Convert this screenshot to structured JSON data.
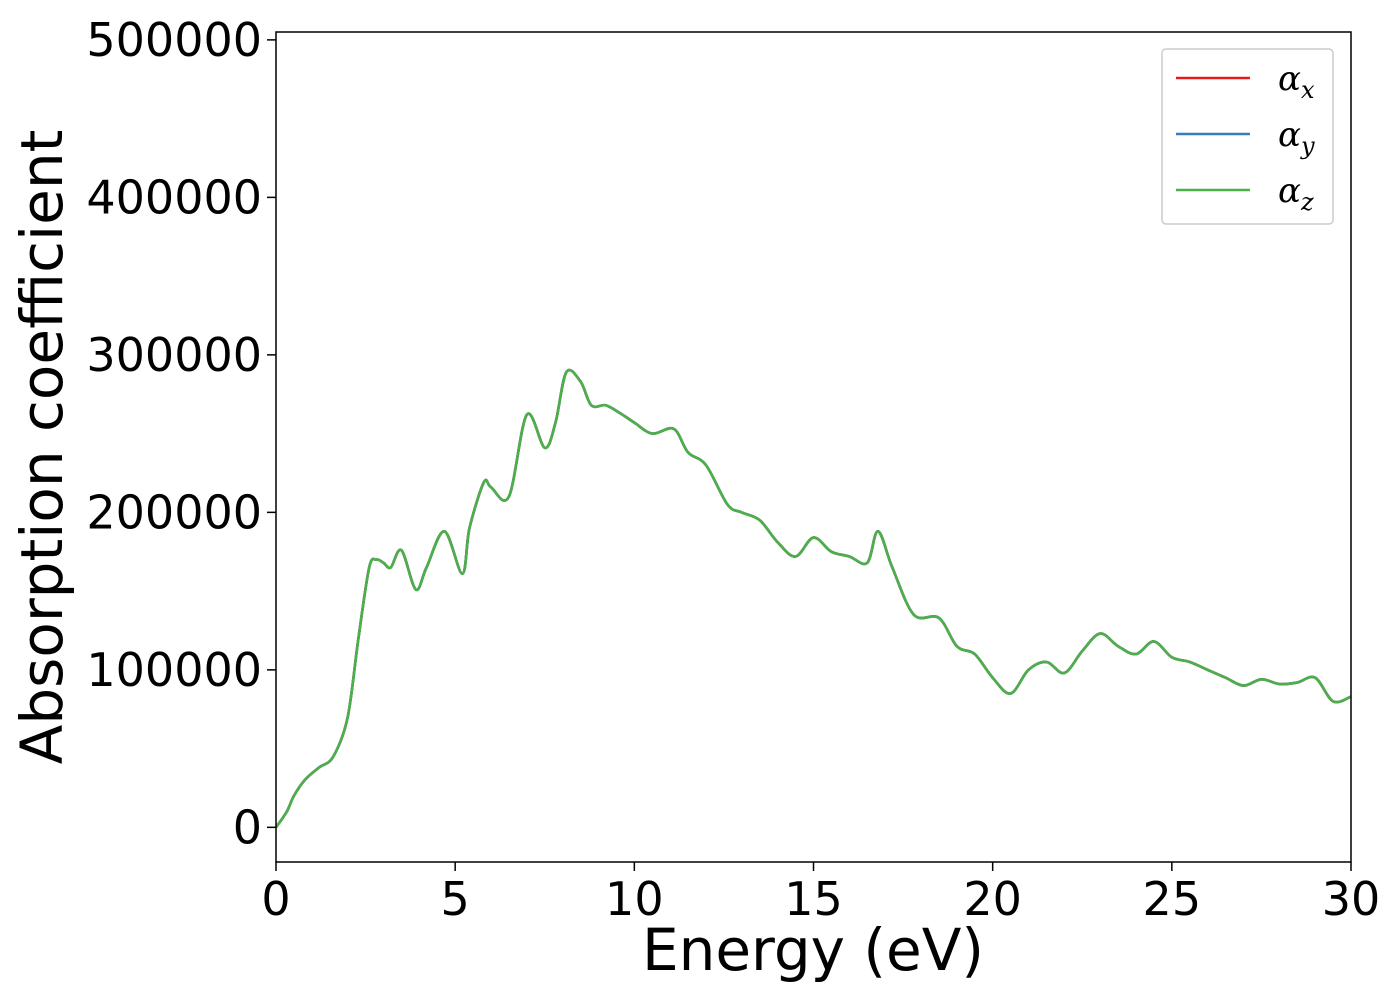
{
  "chart_data": {
    "type": "line",
    "xlabel": "Energy (eV)",
    "ylabel": "Absorption coefficient",
    "xlim": [
      0,
      30
    ],
    "ylim": [
      -22000,
      505000
    ],
    "xticks": [
      "0",
      "5",
      "10",
      "15",
      "20",
      "25",
      "30"
    ],
    "xtick_values": [
      0,
      5,
      10,
      15,
      20,
      25,
      30
    ],
    "yticks": [
      "0",
      "100000",
      "200000",
      "300000",
      "400000",
      "500000"
    ],
    "ytick_values": [
      0,
      100000,
      200000,
      300000,
      400000,
      500000
    ],
    "grid": false,
    "legend_position": "top-right",
    "x": [
      0,
      0.3,
      0.5,
      0.8,
      1.2,
      1.6,
      2.0,
      2.3,
      2.6,
      2.8,
      3.0,
      3.2,
      3.5,
      3.9,
      4.2,
      4.7,
      5.2,
      5.4,
      5.8,
      6.0,
      6.5,
      7.0,
      7.5,
      7.8,
      8.1,
      8.5,
      8.8,
      9.2,
      9.6,
      10.0,
      10.5,
      11.1,
      11.5,
      12.0,
      12.6,
      13.0,
      13.5,
      14.0,
      14.5,
      15.0,
      15.5,
      16.0,
      16.5,
      16.8,
      17.2,
      17.8,
      18.5,
      19.0,
      19.5,
      20.0,
      20.5,
      21.0,
      21.5,
      22.0,
      22.5,
      23.0,
      23.5,
      24.0,
      24.5,
      25.0,
      25.5,
      26.0,
      26.5,
      27.0,
      27.5,
      28.0,
      28.5,
      29.0,
      29.5,
      30.0
    ],
    "series": [
      {
        "name": "α_x",
        "color": "#e41a1c",
        "values": [
          0,
          10000,
          20000,
          30000,
          38000,
          45000,
          70000,
          120000,
          165000,
          170000,
          168000,
          165000,
          176000,
          151000,
          165000,
          188000,
          161000,
          190000,
          219000,
          216000,
          210000,
          262000,
          241000,
          257000,
          289000,
          283000,
          268000,
          268000,
          263000,
          257000,
          250000,
          253000,
          238000,
          230000,
          205000,
          200000,
          195000,
          181000,
          172000,
          184000,
          175000,
          172000,
          168000,
          188000,
          165000,
          135000,
          133000,
          115000,
          110000,
          95000,
          85000,
          100000,
          105000,
          98000,
          112000,
          123000,
          115000,
          110000,
          118000,
          108000,
          105000,
          100000,
          95000,
          90000,
          94000,
          91000,
          92000,
          95000,
          80000,
          83000
        ]
      },
      {
        "name": "α_y",
        "color": "#377eb8",
        "values": [
          0,
          10000,
          20000,
          30000,
          38000,
          45000,
          70000,
          120000,
          165000,
          170000,
          168000,
          165000,
          176000,
          151000,
          165000,
          188000,
          161000,
          190000,
          219000,
          216000,
          210000,
          262000,
          241000,
          257000,
          289000,
          283000,
          268000,
          268000,
          263000,
          257000,
          250000,
          253000,
          238000,
          230000,
          205000,
          200000,
          195000,
          181000,
          172000,
          184000,
          175000,
          172000,
          168000,
          188000,
          165000,
          135000,
          133000,
          115000,
          110000,
          95000,
          85000,
          100000,
          105000,
          98000,
          112000,
          123000,
          115000,
          110000,
          118000,
          108000,
          105000,
          100000,
          95000,
          90000,
          94000,
          91000,
          92000,
          95000,
          80000,
          83000
        ]
      },
      {
        "name": "α_z",
        "color": "#4daf4a",
        "values": [
          0,
          10000,
          20000,
          30000,
          38000,
          45000,
          70000,
          120000,
          165000,
          170000,
          168000,
          165000,
          176000,
          151000,
          165000,
          188000,
          161000,
          190000,
          219000,
          216000,
          210000,
          262000,
          241000,
          257000,
          289000,
          283000,
          268000,
          268000,
          263000,
          257000,
          250000,
          253000,
          238000,
          230000,
          205000,
          200000,
          195000,
          181000,
          172000,
          184000,
          175000,
          172000,
          168000,
          188000,
          165000,
          135000,
          133000,
          115000,
          110000,
          95000,
          85000,
          100000,
          105000,
          98000,
          112000,
          123000,
          115000,
          110000,
          118000,
          108000,
          105000,
          100000,
          95000,
          90000,
          94000,
          91000,
          92000,
          95000,
          80000,
          83000
        ]
      }
    ],
    "legend": [
      {
        "symbol": "α",
        "subscript": "x",
        "color": "#e41a1c"
      },
      {
        "symbol": "α",
        "subscript": "y",
        "color": "#377eb8"
      },
      {
        "symbol": "α",
        "subscript": "z",
        "color": "#4daf4a"
      }
    ]
  }
}
